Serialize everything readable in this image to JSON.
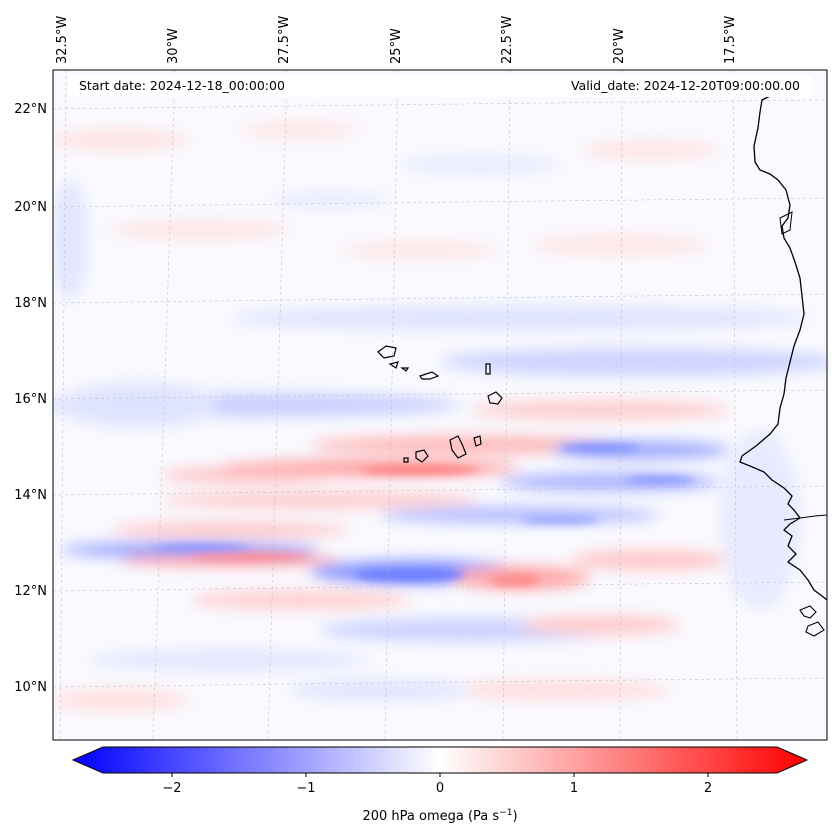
{
  "header": {
    "start_date": "Start date: 2024-12-18_00:00:00",
    "valid_date": "Valid_date: 2024-12-20T09:00:00.00"
  },
  "longitude_labels": [
    "32.5°W",
    "30°W",
    "27.5°W",
    "25°W",
    "22.5°W",
    "20°W",
    "17.5°W"
  ],
  "latitude_labels": [
    "22°N",
    "20°N",
    "18°N",
    "16°N",
    "14°N",
    "12°N",
    "10°N"
  ],
  "colorbar": {
    "ticks": [
      "−2",
      "−1",
      "0",
      "1",
      "2"
    ],
    "label": "200 hPa omega (Pa s",
    "label_sup": "−1",
    "label_close": ")",
    "min_color": "#0000ff",
    "mid_color": "#ffffff",
    "max_color": "#ff0000"
  },
  "map": {
    "field_description": "200 hPa vertical velocity (omega) forecast field",
    "coastline_color": "#000000"
  }
}
